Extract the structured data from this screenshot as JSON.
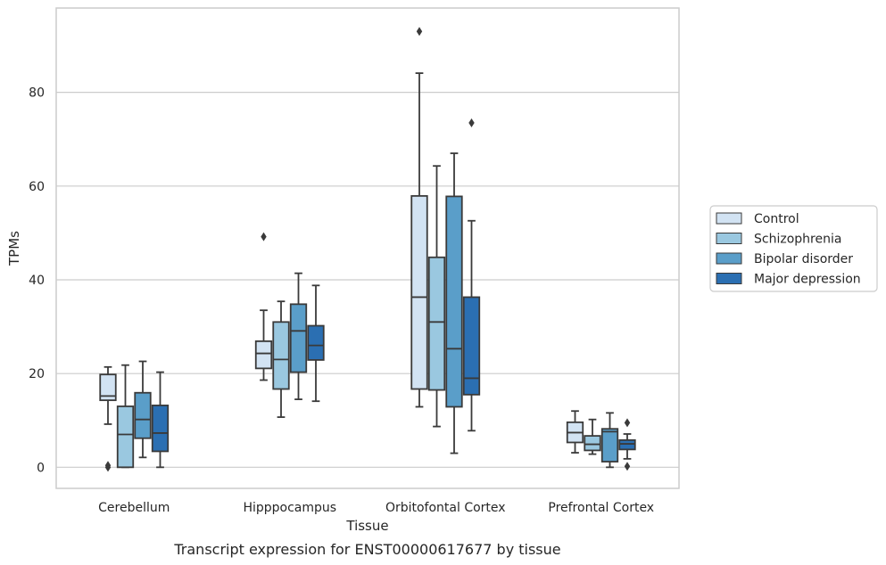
{
  "chart_data": {
    "type": "boxplot",
    "title": "",
    "caption": "Transcript expression for ENST00000617677 by tissue",
    "xlabel": "Tissue",
    "ylabel": "TPMs",
    "ylim": [
      -4.5,
      98
    ],
    "yticks": [
      0,
      20,
      40,
      60,
      80
    ],
    "grid": "horizontal",
    "legend_position": "right",
    "categories": [
      "Cerebellum",
      "Hipppocampus",
      "Orbitofontal Cortex",
      "Prefrontal Cortex"
    ],
    "series": [
      {
        "name": "Control",
        "color": "#d2e3f3",
        "boxes": [
          {
            "whislo": 9.2,
            "q1": 14.3,
            "med": 15.2,
            "q3": 19.8,
            "whishi": 21.4,
            "fliers": [
              0.0,
              0.4
            ]
          },
          {
            "whislo": 18.6,
            "q1": 21.1,
            "med": 24.3,
            "q3": 26.9,
            "whishi": 33.5,
            "fliers": [
              49.2
            ]
          },
          {
            "whislo": 12.9,
            "q1": 16.7,
            "med": 36.3,
            "q3": 57.9,
            "whishi": 84.1,
            "fliers": [
              93.0
            ]
          },
          {
            "whislo": 3.1,
            "q1": 5.3,
            "med": 7.4,
            "q3": 9.6,
            "whishi": 12.0,
            "fliers": []
          }
        ]
      },
      {
        "name": "Schizophrenia",
        "color": "#9ac8e0",
        "boxes": [
          {
            "whislo": 0.0,
            "q1": 0.0,
            "med": 7.0,
            "q3": 13.0,
            "whishi": 21.8,
            "fliers": []
          },
          {
            "whislo": 10.7,
            "q1": 16.7,
            "med": 23.0,
            "q3": 31.0,
            "whishi": 35.4,
            "fliers": []
          },
          {
            "whislo": 8.7,
            "q1": 16.5,
            "med": 31.0,
            "q3": 44.8,
            "whishi": 64.3,
            "fliers": []
          },
          {
            "whislo": 2.8,
            "q1": 3.6,
            "med": 4.9,
            "q3": 6.7,
            "whishi": 10.2,
            "fliers": []
          }
        ]
      },
      {
        "name": "Bipolar disorder",
        "color": "#5a9ec9",
        "boxes": [
          {
            "whislo": 2.1,
            "q1": 6.2,
            "med": 10.2,
            "q3": 15.9,
            "whishi": 22.6,
            "fliers": []
          },
          {
            "whislo": 14.5,
            "q1": 20.3,
            "med": 29.1,
            "q3": 34.8,
            "whishi": 41.4,
            "fliers": []
          },
          {
            "whislo": 3.0,
            "q1": 12.9,
            "med": 25.3,
            "q3": 57.8,
            "whishi": 67.0,
            "fliers": []
          },
          {
            "whislo": 0.0,
            "q1": 1.2,
            "med": 7.6,
            "q3": 8.2,
            "whishi": 11.6,
            "fliers": []
          }
        ]
      },
      {
        "name": "Major depression",
        "color": "#2b6fb2",
        "boxes": [
          {
            "whislo": 0.0,
            "q1": 3.4,
            "med": 7.3,
            "q3": 13.2,
            "whishi": 20.3,
            "fliers": []
          },
          {
            "whislo": 14.1,
            "q1": 22.9,
            "med": 26.0,
            "q3": 30.2,
            "whishi": 38.8,
            "fliers": []
          },
          {
            "whislo": 7.8,
            "q1": 15.5,
            "med": 19.0,
            "q3": 36.3,
            "whishi": 52.6,
            "fliers": [
              73.5
            ]
          },
          {
            "whislo": 1.8,
            "q1": 3.8,
            "med": 5.0,
            "q3": 5.8,
            "whishi": 7.1,
            "fliers": [
              9.5,
              0.2
            ]
          }
        ]
      }
    ]
  }
}
